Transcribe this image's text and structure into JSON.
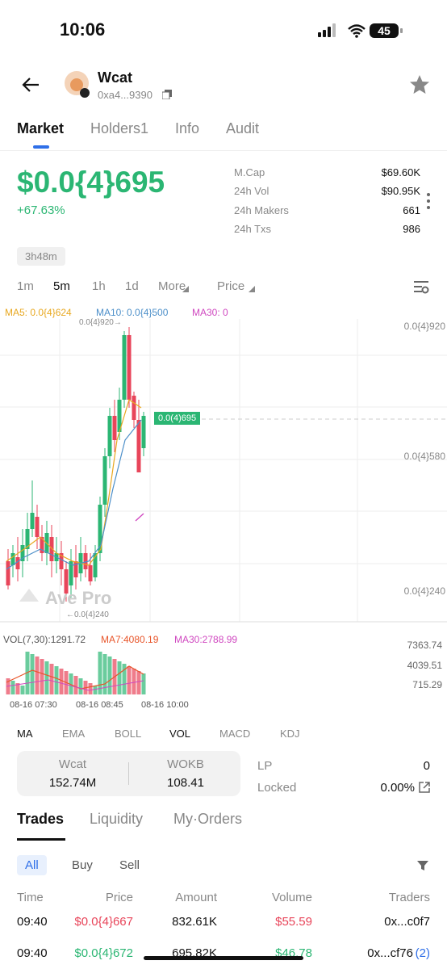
{
  "status": {
    "time": "10:06",
    "battery": "45"
  },
  "header": {
    "name": "Wcat",
    "address": "0xa4...9390"
  },
  "tabs": [
    "Market",
    "Holders1",
    "Info",
    "Audit"
  ],
  "price": {
    "value": "$0.0{4}695",
    "change": "+67.63%"
  },
  "stats": [
    {
      "label": "M.Cap",
      "value": "$69.60K"
    },
    {
      "label": "24h Vol",
      "value": "$90.95K"
    },
    {
      "label": "24h Makers",
      "value": "661"
    },
    {
      "label": "24h Txs",
      "value": "986"
    }
  ],
  "age": "3h48m",
  "intervals": [
    "1m",
    "5m",
    "1h",
    "1d",
    "More",
    "Price"
  ],
  "ma": [
    "MA5: 0.0{4}624",
    "MA10: 0.0{4}500",
    "MA30: 0"
  ],
  "chart": {
    "high": "0.0{4}920→",
    "low": "←0.0{4}240",
    "current": "0.0(4)695",
    "y_labels": [
      "0.0{4}920",
      "0.0{4}580",
      "0.0{4}240"
    ],
    "watermark": "Ave Pro"
  },
  "volume": {
    "legend": [
      "VOL(7,30):1291.72",
      "MA7:4080.19",
      "MA30:2788.99"
    ],
    "y_labels": [
      "7363.74",
      "4039.51",
      "715.29"
    ],
    "times": [
      "08-16 07:30",
      "08-16 08:45",
      "08-16 10:00"
    ]
  },
  "indicators": [
    "MA",
    "EMA",
    "BOLL",
    "VOL",
    "MACD",
    "KDJ"
  ],
  "pool": {
    "tokens": [
      {
        "name": "Wcat",
        "amount": "152.74M"
      },
      {
        "name": "WOKB",
        "amount": "108.41"
      }
    ],
    "lp": {
      "label": "LP",
      "value": "0"
    },
    "locked": {
      "label": "Locked",
      "value": "0.00%"
    }
  },
  "trade_tabs": [
    "Trades",
    "Liquidity",
    "My·Orders"
  ],
  "filters": [
    "All",
    "Buy",
    "Sell"
  ],
  "columns": [
    "Time",
    "Price",
    "Amount",
    "Volume",
    "Traders"
  ],
  "rows": [
    [
      "09:40",
      "$0.0{4}667",
      "832.61K",
      "$55.59",
      "0x...c0f7"
    ],
    [
      "09:40",
      "$0.0{4}672",
      "695.82K",
      "$46.78",
      "0x...cf76",
      "(2)"
    ]
  ]
}
